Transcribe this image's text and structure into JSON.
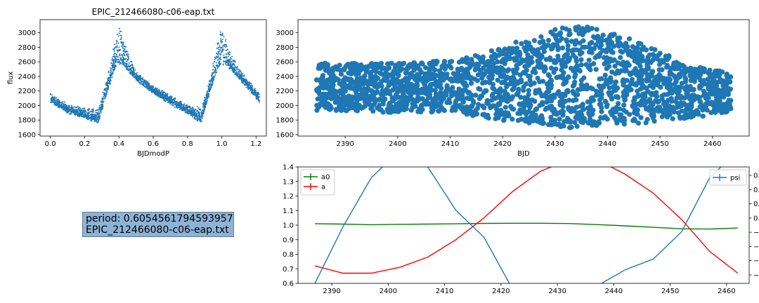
{
  "info_box": {
    "period_line": "period: 0.6054561794593957",
    "file_line": "EPIC_212466080-c06-eap.txt"
  },
  "colors": {
    "points": "#1f77b4",
    "psi": "#1f77b4",
    "a0": "green",
    "a": "red"
  },
  "chart_data": [
    {
      "type": "scatter",
      "title": "EPIC_212466080-c06-eap.txt",
      "xlabel": "BJDmodP",
      "ylabel": "flux",
      "xlim": [
        -0.06,
        1.26
      ],
      "ylim": [
        1580,
        3180
      ],
      "xticks": [
        0.0,
        0.2,
        0.4,
        0.6,
        0.8,
        1.0,
        1.2
      ],
      "yticks": [
        1600,
        1800,
        2000,
        2200,
        2400,
        2600,
        2800,
        3000
      ],
      "description_shape": "phase-folded light curve, peaks near phase 0.4 and 1.0"
    },
    {
      "type": "scatter",
      "title": "",
      "xlabel": "BJD",
      "ylabel": "",
      "xlim": [
        2381,
        2467
      ],
      "ylim": [
        1580,
        3180
      ],
      "xticks": [
        2390,
        2400,
        2410,
        2420,
        2430,
        2440,
        2450,
        2460
      ],
      "yticks": [
        1600,
        1800,
        2000,
        2200,
        2400,
        2600,
        2800,
        3000
      ],
      "x_range": [
        2384.5,
        2463.5
      ],
      "envelope_max": [
        [
          2384.5,
          2590
        ],
        [
          2400,
          2580
        ],
        [
          2410,
          2620
        ],
        [
          2420,
          2800
        ],
        [
          2430,
          3080
        ],
        [
          2436,
          3100
        ],
        [
          2445,
          2900
        ],
        [
          2455,
          2580
        ],
        [
          2463.5,
          2440
        ]
      ],
      "envelope_min": [
        [
          2384.5,
          1930
        ],
        [
          2400,
          1900
        ],
        [
          2410,
          1900
        ],
        [
          2420,
          1790
        ],
        [
          2430,
          1720
        ],
        [
          2436,
          1660
        ],
        [
          2445,
          1740
        ],
        [
          2455,
          1820
        ],
        [
          2463.5,
          1900
        ]
      ]
    },
    {
      "type": "line",
      "title": "",
      "xlabel": "",
      "ylabel": "",
      "xlim": [
        2384,
        2464
      ],
      "ylim": [
        0.6,
        1.4
      ],
      "xticks": [
        2390,
        2400,
        2410,
        2420,
        2430,
        2440,
        2450,
        2460
      ],
      "yticks": [
        0.6,
        0.7,
        0.8,
        0.9,
        1.0,
        1.1,
        1.2,
        1.3,
        1.4
      ],
      "legend_left": "upper-left",
      "legend_right": "upper-right",
      "x": [
        2387,
        2392,
        2397,
        2402,
        2407,
        2412,
        2417,
        2422,
        2427,
        2432,
        2437,
        2442,
        2447,
        2452,
        2457,
        2462
      ],
      "series": [
        {
          "name": "a0",
          "axis": "left",
          "color": "green",
          "values": [
            1.01,
            1.007,
            1.003,
            1.006,
            1.007,
            1.009,
            1.012,
            1.013,
            1.013,
            1.011,
            1.004,
            0.995,
            0.985,
            0.975,
            0.973,
            0.98
          ]
        },
        {
          "name": "a",
          "axis": "left",
          "color": "red",
          "values": [
            0.72,
            0.67,
            0.67,
            0.71,
            0.78,
            0.9,
            1.05,
            1.23,
            1.37,
            1.45,
            1.45,
            1.35,
            1.22,
            1.04,
            0.82,
            0.67
          ]
        },
        {
          "name": "psi",
          "axis": "right",
          "color": "#1f77b4",
          "values": [
            -0.3,
            1.8,
            3.6,
            4.6,
            4.0,
            2.4,
            1.4,
            -0.5,
            -0.8,
            -0.7,
            -0.4,
            0.2,
            0.6,
            1.6,
            3.6,
            4.6
          ]
        }
      ],
      "right_ylim": [
        -0.3,
        4.0
      ],
      "right_ticks_partial": [
        "0.",
        "0.",
        "0.",
        "0.",
        "−",
        "−",
        "−",
        "−"
      ]
    }
  ]
}
